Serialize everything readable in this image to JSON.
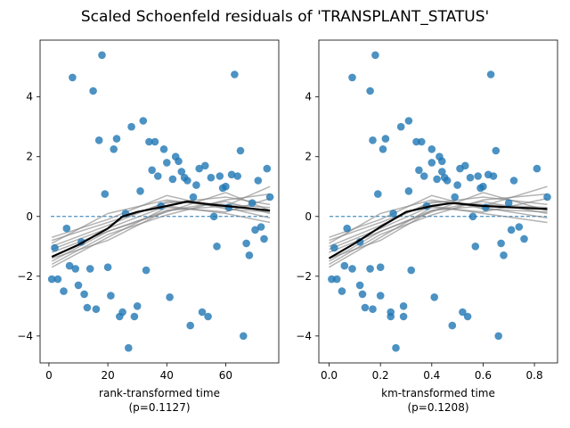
{
  "figure_title": "Scaled Schoenfeld residuals of 'TRANSPLANT_STATUS'",
  "colors": {
    "points": "#1f77b4",
    "zero_line": "#1f77b4",
    "lowess": "#000000",
    "bootstrap": "#808080"
  },
  "chart_data": [
    {
      "type": "scatter",
      "xlabel": "rank-transformed time",
      "xlabel_note": "(p=0.1127)",
      "xlim": [
        -3,
        78
      ],
      "ylim": [
        -4.9,
        5.9
      ],
      "xticks": [
        0,
        20,
        40,
        60
      ],
      "yticks": [
        -4,
        -2,
        0,
        2,
        4
      ],
      "grid": false,
      "points": [
        [
          1,
          -2.1
        ],
        [
          2,
          -1.05
        ],
        [
          3,
          -2.1
        ],
        [
          5,
          -2.5
        ],
        [
          6,
          -0.4
        ],
        [
          7,
          -1.65
        ],
        [
          8,
          4.65
        ],
        [
          9,
          -1.75
        ],
        [
          10,
          -2.3
        ],
        [
          11,
          -0.85
        ],
        [
          12,
          -2.6
        ],
        [
          13,
          -3.05
        ],
        [
          14,
          -1.75
        ],
        [
          15,
          4.2
        ],
        [
          16,
          -3.1
        ],
        [
          17,
          2.55
        ],
        [
          18,
          5.4
        ],
        [
          19,
          0.75
        ],
        [
          20,
          -1.7
        ],
        [
          21,
          -2.65
        ],
        [
          22,
          2.25
        ],
        [
          23,
          2.6
        ],
        [
          24,
          -3.35
        ],
        [
          25,
          -3.2
        ],
        [
          26,
          0.1
        ],
        [
          27,
          -4.4
        ],
        [
          28,
          3.0
        ],
        [
          29,
          -3.35
        ],
        [
          30,
          -3.0
        ],
        [
          31,
          0.85
        ],
        [
          32,
          3.2
        ],
        [
          33,
          -1.8
        ],
        [
          34,
          2.5
        ],
        [
          35,
          1.55
        ],
        [
          36,
          2.5
        ],
        [
          37,
          1.35
        ],
        [
          38,
          0.35
        ],
        [
          39,
          2.25
        ],
        [
          40,
          1.8
        ],
        [
          41,
          -2.7
        ],
        [
          42,
          1.25
        ],
        [
          43,
          2.0
        ],
        [
          44,
          1.85
        ],
        [
          45,
          1.5
        ],
        [
          46,
          1.3
        ],
        [
          47,
          1.2
        ],
        [
          48,
          -3.65
        ],
        [
          49,
          0.65
        ],
        [
          50,
          1.05
        ],
        [
          51,
          1.6
        ],
        [
          52,
          -3.2
        ],
        [
          53,
          1.7
        ],
        [
          54,
          -3.35
        ],
        [
          55,
          1.3
        ],
        [
          56,
          0.0
        ],
        [
          57,
          -1.0
        ],
        [
          58,
          1.35
        ],
        [
          59,
          0.95
        ],
        [
          60,
          1.0
        ],
        [
          61,
          0.3
        ],
        [
          62,
          1.4
        ],
        [
          63,
          4.75
        ],
        [
          64,
          1.35
        ],
        [
          65,
          2.2
        ],
        [
          66,
          -4.0
        ],
        [
          67,
          -0.9
        ],
        [
          68,
          -1.3
        ],
        [
          69,
          0.45
        ],
        [
          70,
          -0.45
        ],
        [
          71,
          1.2
        ],
        [
          72,
          -0.35
        ],
        [
          73,
          -0.75
        ],
        [
          74,
          1.6
        ],
        [
          75,
          0.65
        ]
      ],
      "lowess": [
        [
          1,
          -1.35
        ],
        [
          10,
          -0.95
        ],
        [
          20,
          -0.4
        ],
        [
          25,
          0.0
        ],
        [
          30,
          0.15
        ],
        [
          40,
          0.35
        ],
        [
          47,
          0.5
        ],
        [
          55,
          0.4
        ],
        [
          65,
          0.3
        ],
        [
          75,
          0.2
        ]
      ],
      "bootstrap_lines": [
        [
          [
            1,
            -1.0
          ],
          [
            20,
            -0.3
          ],
          [
            40,
            0.5
          ],
          [
            60,
            0.4
          ],
          [
            75,
            0.3
          ]
        ],
        [
          [
            1,
            -1.5
          ],
          [
            20,
            -0.5
          ],
          [
            40,
            0.2
          ],
          [
            60,
            0.5
          ],
          [
            75,
            0.1
          ]
        ],
        [
          [
            1,
            -0.8
          ],
          [
            20,
            -0.2
          ],
          [
            40,
            0.45
          ],
          [
            60,
            0.65
          ],
          [
            75,
            0.4
          ]
        ],
        [
          [
            1,
            -1.7
          ],
          [
            20,
            -0.7
          ],
          [
            40,
            0.3
          ],
          [
            60,
            0.15
          ],
          [
            75,
            0.6
          ]
        ],
        [
          [
            1,
            -0.9
          ],
          [
            20,
            0.1
          ],
          [
            40,
            0.55
          ],
          [
            60,
            0.3
          ],
          [
            75,
            -0.05
          ]
        ],
        [
          [
            1,
            -1.2
          ],
          [
            20,
            -0.5
          ],
          [
            40,
            0.15
          ],
          [
            60,
            0.8
          ],
          [
            75,
            0.2
          ]
        ],
        [
          [
            1,
            -1.4
          ],
          [
            20,
            -0.8
          ],
          [
            40,
            0.2
          ],
          [
            60,
            0.35
          ],
          [
            75,
            1.0
          ]
        ],
        [
          [
            1,
            -0.7
          ],
          [
            20,
            -0.1
          ],
          [
            40,
            0.7
          ],
          [
            60,
            0.25
          ],
          [
            75,
            0.15
          ]
        ],
        [
          [
            1,
            -1.6
          ],
          [
            20,
            -0.6
          ],
          [
            40,
            0.05
          ],
          [
            60,
            0.55
          ],
          [
            75,
            0.75
          ]
        ],
        [
          [
            1,
            -1.1
          ],
          [
            20,
            -0.4
          ],
          [
            40,
            0.35
          ],
          [
            60,
            0.1
          ],
          [
            75,
            -0.2
          ]
        ]
      ]
    },
    {
      "type": "scatter",
      "xlabel": "km-transformed time",
      "xlabel_note": "(p=0.1208)",
      "xlim": [
        -0.04,
        0.89
      ],
      "ylim": [
        -4.9,
        5.9
      ],
      "xticks": [
        0.0,
        0.2,
        0.4,
        0.6,
        0.8
      ],
      "yticks": [
        -4,
        -2,
        0,
        2,
        4
      ],
      "grid": false,
      "points": [
        [
          0.01,
          -2.1
        ],
        [
          0.02,
          -1.05
        ],
        [
          0.03,
          -2.1
        ],
        [
          0.05,
          -2.5
        ],
        [
          0.07,
          -0.4
        ],
        [
          0.06,
          -1.65
        ],
        [
          0.09,
          4.65
        ],
        [
          0.09,
          -1.75
        ],
        [
          0.12,
          -2.3
        ],
        [
          0.12,
          -0.85
        ],
        [
          0.13,
          -2.6
        ],
        [
          0.14,
          -3.05
        ],
        [
          0.16,
          -1.75
        ],
        [
          0.16,
          4.2
        ],
        [
          0.17,
          -3.1
        ],
        [
          0.17,
          2.55
        ],
        [
          0.18,
          5.4
        ],
        [
          0.19,
          0.75
        ],
        [
          0.2,
          -1.7
        ],
        [
          0.2,
          -2.65
        ],
        [
          0.21,
          2.25
        ],
        [
          0.22,
          2.6
        ],
        [
          0.24,
          -3.35
        ],
        [
          0.24,
          -3.2
        ],
        [
          0.25,
          0.1
        ],
        [
          0.26,
          -4.4
        ],
        [
          0.28,
          3.0
        ],
        [
          0.29,
          -3.35
        ],
        [
          0.29,
          -3.0
        ],
        [
          0.31,
          0.85
        ],
        [
          0.31,
          3.2
        ],
        [
          0.32,
          -1.8
        ],
        [
          0.34,
          2.5
        ],
        [
          0.35,
          1.55
        ],
        [
          0.36,
          2.5
        ],
        [
          0.37,
          1.35
        ],
        [
          0.38,
          0.35
        ],
        [
          0.4,
          2.25
        ],
        [
          0.4,
          1.8
        ],
        [
          0.41,
          -2.7
        ],
        [
          0.42,
          1.25
        ],
        [
          0.43,
          2.0
        ],
        [
          0.44,
          1.85
        ],
        [
          0.44,
          1.5
        ],
        [
          0.45,
          1.3
        ],
        [
          0.46,
          1.2
        ],
        [
          0.48,
          -3.65
        ],
        [
          0.49,
          0.65
        ],
        [
          0.5,
          1.05
        ],
        [
          0.51,
          1.6
        ],
        [
          0.52,
          -3.2
        ],
        [
          0.53,
          1.7
        ],
        [
          0.54,
          -3.35
        ],
        [
          0.55,
          1.3
        ],
        [
          0.56,
          0.0
        ],
        [
          0.57,
          -1.0
        ],
        [
          0.58,
          1.35
        ],
        [
          0.59,
          0.95
        ],
        [
          0.6,
          1.0
        ],
        [
          0.61,
          0.3
        ],
        [
          0.62,
          1.4
        ],
        [
          0.63,
          4.75
        ],
        [
          0.64,
          1.35
        ],
        [
          0.65,
          2.2
        ],
        [
          0.66,
          -4.0
        ],
        [
          0.67,
          -0.9
        ],
        [
          0.68,
          -1.3
        ],
        [
          0.7,
          0.45
        ],
        [
          0.71,
          -0.45
        ],
        [
          0.72,
          1.2
        ],
        [
          0.74,
          -0.35
        ],
        [
          0.76,
          -0.75
        ],
        [
          0.81,
          1.6
        ],
        [
          0.85,
          0.65
        ]
      ],
      "lowess": [
        [
          0.0,
          -1.4
        ],
        [
          0.1,
          -0.9
        ],
        [
          0.2,
          -0.35
        ],
        [
          0.3,
          0.15
        ],
        [
          0.4,
          0.35
        ],
        [
          0.48,
          0.45
        ],
        [
          0.6,
          0.35
        ],
        [
          0.72,
          0.3
        ],
        [
          0.85,
          0.25
        ]
      ],
      "bootstrap_lines": [
        [
          [
            0.0,
            -1.0
          ],
          [
            0.2,
            -0.3
          ],
          [
            0.4,
            0.5
          ],
          [
            0.6,
            0.4
          ],
          [
            0.85,
            0.3
          ]
        ],
        [
          [
            0.0,
            -1.5
          ],
          [
            0.2,
            -0.5
          ],
          [
            0.4,
            0.2
          ],
          [
            0.6,
            0.5
          ],
          [
            0.85,
            0.1
          ]
        ],
        [
          [
            0.0,
            -0.8
          ],
          [
            0.2,
            -0.2
          ],
          [
            0.4,
            0.45
          ],
          [
            0.6,
            0.65
          ],
          [
            0.85,
            0.4
          ]
        ],
        [
          [
            0.0,
            -1.7
          ],
          [
            0.2,
            -0.7
          ],
          [
            0.4,
            0.3
          ],
          [
            0.6,
            0.15
          ],
          [
            0.85,
            0.6
          ]
        ],
        [
          [
            0.0,
            -0.9
          ],
          [
            0.2,
            0.1
          ],
          [
            0.4,
            0.55
          ],
          [
            0.6,
            0.3
          ],
          [
            0.85,
            -0.05
          ]
        ],
        [
          [
            0.0,
            -1.2
          ],
          [
            0.2,
            -0.5
          ],
          [
            0.4,
            0.15
          ],
          [
            0.6,
            0.8
          ],
          [
            0.85,
            0.2
          ]
        ],
        [
          [
            0.0,
            -1.4
          ],
          [
            0.2,
            -0.8
          ],
          [
            0.4,
            0.2
          ],
          [
            0.6,
            0.35
          ],
          [
            0.85,
            1.0
          ]
        ],
        [
          [
            0.0,
            -0.7
          ],
          [
            0.2,
            -0.1
          ],
          [
            0.4,
            0.7
          ],
          [
            0.6,
            0.25
          ],
          [
            0.85,
            0.15
          ]
        ],
        [
          [
            0.0,
            -1.6
          ],
          [
            0.2,
            -0.6
          ],
          [
            0.4,
            0.05
          ],
          [
            0.6,
            0.55
          ],
          [
            0.85,
            0.75
          ]
        ],
        [
          [
            0.0,
            -1.1
          ],
          [
            0.2,
            -0.4
          ],
          [
            0.4,
            0.35
          ],
          [
            0.6,
            0.1
          ],
          [
            0.85,
            -0.2
          ]
        ]
      ]
    }
  ]
}
